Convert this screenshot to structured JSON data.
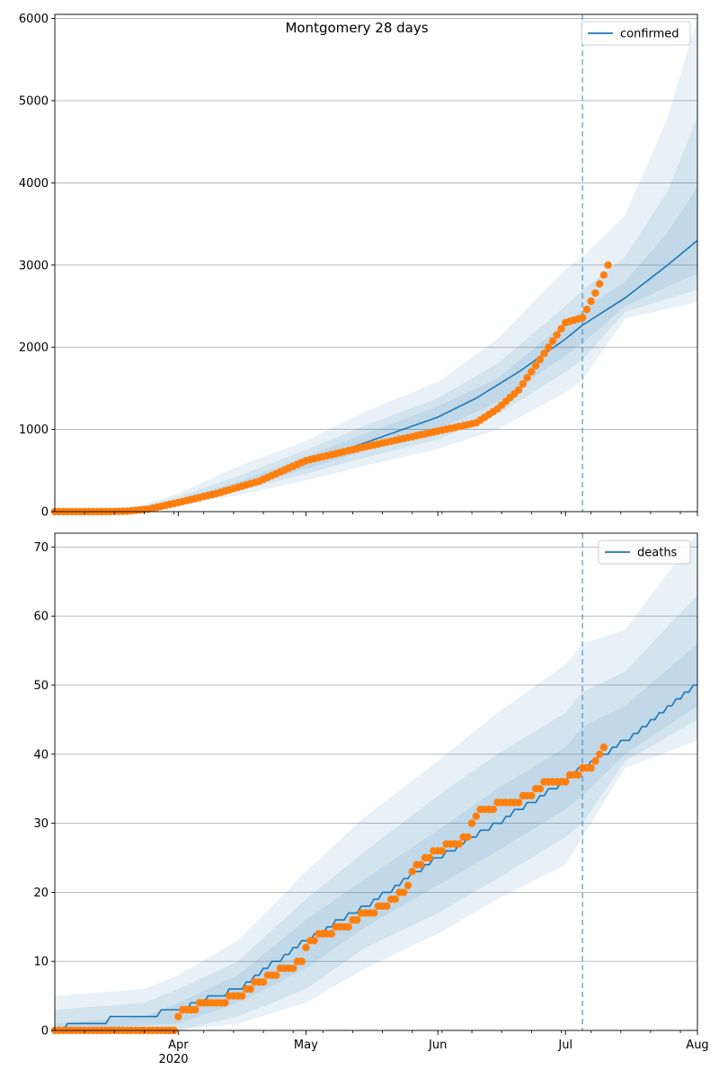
{
  "figure": {
    "title": "Montgomery 28 days",
    "year_label": "2020"
  },
  "colors": {
    "model": "#1f77b4",
    "observed": "#ff7f0e",
    "band": "#1f77b4",
    "grid": "#b0b0b0",
    "cutoff": "#1f77b4"
  },
  "chart_data": [
    {
      "type": "line",
      "legend_entry": "confirmed",
      "legend_position": "top-right",
      "x_range": [
        "2020-03-03",
        "2020-08-01"
      ],
      "ylim": [
        0,
        6050
      ],
      "y_ticks": [
        0,
        1000,
        2000,
        3000,
        4000,
        5000,
        6000
      ],
      "x_ticks": [
        {
          "date": "2020-04-01",
          "label": "Apr"
        },
        {
          "date": "2020-05-01",
          "label": "May"
        },
        {
          "date": "2020-06-01",
          "label": "Jun"
        },
        {
          "date": "2020-07-01",
          "label": "Jul"
        },
        {
          "date": "2020-08-01",
          "label": "Aug"
        }
      ],
      "grid": "y",
      "cutoff_date": "2020-07-05",
      "model_median": [
        [
          "2020-03-03",
          0
        ],
        [
          "2020-03-15",
          5
        ],
        [
          "2020-03-25",
          50
        ],
        [
          "2020-04-01",
          120
        ],
        [
          "2020-04-10",
          220
        ],
        [
          "2020-04-20",
          360
        ],
        [
          "2020-05-01",
          590
        ],
        [
          "2020-05-15",
          840
        ],
        [
          "2020-06-01",
          1150
        ],
        [
          "2020-06-10",
          1380
        ],
        [
          "2020-06-20",
          1700
        ],
        [
          "2020-07-01",
          2100
        ],
        [
          "2020-07-05",
          2270
        ],
        [
          "2020-07-15",
          2600
        ],
        [
          "2020-07-25",
          3000
        ],
        [
          "2020-08-01",
          3300
        ]
      ],
      "bands": [
        {
          "lower": [
            [
              "2020-03-03",
              0
            ],
            [
              "2020-03-20",
              2
            ],
            [
              "2020-04-01",
              70
            ],
            [
              "2020-04-15",
              200
            ],
            [
              "2020-05-01",
              380
            ],
            [
              "2020-05-15",
              560
            ],
            [
              "2020-06-01",
              760
            ],
            [
              "2020-06-15",
              1000
            ],
            [
              "2020-07-01",
              1450
            ],
            [
              "2020-07-05",
              1600
            ],
            [
              "2020-07-15",
              2350
            ],
            [
              "2020-08-01",
              2550
            ]
          ],
          "upper": [
            [
              "2020-03-03",
              0
            ],
            [
              "2020-03-20",
              30
            ],
            [
              "2020-04-01",
              220
            ],
            [
              "2020-04-15",
              550
            ],
            [
              "2020-05-01",
              860
            ],
            [
              "2020-05-15",
              1220
            ],
            [
              "2020-06-01",
              1580
            ],
            [
              "2020-06-15",
              2100
            ],
            [
              "2020-07-01",
              2950
            ],
            [
              "2020-07-05",
              3100
            ],
            [
              "2020-07-15",
              3600
            ],
            [
              "2020-07-25",
              4800
            ],
            [
              "2020-08-01",
              6000
            ]
          ]
        },
        {
          "lower": [
            [
              "2020-03-03",
              0
            ],
            [
              "2020-03-20",
              3
            ],
            [
              "2020-04-01",
              90
            ],
            [
              "2020-04-15",
              250
            ],
            [
              "2020-05-01",
              460
            ],
            [
              "2020-05-15",
              660
            ],
            [
              "2020-06-01",
              880
            ],
            [
              "2020-06-15",
              1180
            ],
            [
              "2020-07-01",
              1700
            ],
            [
              "2020-07-05",
              1850
            ],
            [
              "2020-07-15",
              2430
            ],
            [
              "2020-08-01",
              2700
            ]
          ],
          "upper": [
            [
              "2020-03-03",
              0
            ],
            [
              "2020-03-20",
              20
            ],
            [
              "2020-04-01",
              180
            ],
            [
              "2020-04-15",
              430
            ],
            [
              "2020-05-01",
              750
            ],
            [
              "2020-05-15",
              1050
            ],
            [
              "2020-06-01",
              1380
            ],
            [
              "2020-06-15",
              1800
            ],
            [
              "2020-07-01",
              2500
            ],
            [
              "2020-07-05",
              2700
            ],
            [
              "2020-07-15",
              3100
            ],
            [
              "2020-07-25",
              3900
            ],
            [
              "2020-08-01",
              4800
            ]
          ]
        },
        {
          "lower": [
            [
              "2020-03-03",
              0
            ],
            [
              "2020-03-20",
              4
            ],
            [
              "2020-04-01",
              105
            ],
            [
              "2020-04-15",
              285
            ],
            [
              "2020-05-01",
              520
            ],
            [
              "2020-05-15",
              740
            ],
            [
              "2020-06-01",
              1000
            ],
            [
              "2020-06-15",
              1330
            ],
            [
              "2020-07-01",
              1900
            ],
            [
              "2020-07-05",
              2050
            ],
            [
              "2020-07-15",
              2500
            ],
            [
              "2020-08-01",
              2900
            ]
          ],
          "upper": [
            [
              "2020-03-03",
              0
            ],
            [
              "2020-03-20",
              14
            ],
            [
              "2020-04-01",
              150
            ],
            [
              "2020-04-15",
              360
            ],
            [
              "2020-05-01",
              670
            ],
            [
              "2020-05-15",
              950
            ],
            [
              "2020-06-01",
              1280
            ],
            [
              "2020-06-15",
              1620
            ],
            [
              "2020-07-01",
              2300
            ],
            [
              "2020-07-05",
              2450
            ],
            [
              "2020-07-15",
              2800
            ],
            [
              "2020-07-25",
              3400
            ],
            [
              "2020-08-01",
              3950
            ]
          ]
        }
      ],
      "observed": [
        [
          "2020-03-03",
          0
        ],
        [
          "2020-03-15",
          0
        ],
        [
          "2020-03-20",
          5
        ],
        [
          "2020-03-25",
          30
        ],
        [
          "2020-04-01",
          110
        ],
        [
          "2020-04-10",
          220
        ],
        [
          "2020-04-20",
          370
        ],
        [
          "2020-05-01",
          620
        ],
        [
          "2020-05-15",
          790
        ],
        [
          "2020-05-25",
          900
        ],
        [
          "2020-06-01",
          980
        ],
        [
          "2020-06-10",
          1080
        ],
        [
          "2020-06-15",
          1250
        ],
        [
          "2020-06-20",
          1480
        ],
        [
          "2020-06-25",
          1850
        ],
        [
          "2020-07-01",
          2300
        ],
        [
          "2020-07-05",
          2360
        ],
        [
          "2020-07-08",
          2660
        ],
        [
          "2020-07-10",
          2880
        ],
        [
          "2020-07-11",
          3000
        ]
      ]
    },
    {
      "type": "line",
      "legend_entry": "deaths",
      "legend_position": "top-right",
      "x_range": [
        "2020-03-03",
        "2020-08-01"
      ],
      "ylim": [
        0,
        72
      ],
      "y_ticks": [
        0,
        10,
        20,
        30,
        40,
        50,
        60,
        70
      ],
      "x_ticks": [
        {
          "date": "2020-04-01",
          "label": "Apr"
        },
        {
          "date": "2020-05-01",
          "label": "May"
        },
        {
          "date": "2020-06-01",
          "label": "Jun"
        },
        {
          "date": "2020-07-01",
          "label": "Jul"
        },
        {
          "date": "2020-08-01",
          "label": "Aug"
        }
      ],
      "grid": "y",
      "cutoff_date": "2020-07-05",
      "model_median": [
        [
          "2020-03-03",
          0
        ],
        [
          "2020-03-08",
          1
        ],
        [
          "2020-03-24",
          2
        ],
        [
          "2020-04-01",
          3
        ],
        [
          "2020-04-15",
          6
        ],
        [
          "2020-05-01",
          13
        ],
        [
          "2020-05-15",
          18
        ],
        [
          "2020-06-01",
          25
        ],
        [
          "2020-06-15",
          30
        ],
        [
          "2020-07-01",
          36
        ],
        [
          "2020-07-05",
          38
        ],
        [
          "2020-07-15",
          42
        ],
        [
          "2020-08-01",
          50
        ]
      ],
      "bands": [
        {
          "lower": [
            [
              "2020-03-03",
              0
            ],
            [
              "2020-03-31",
              0
            ],
            [
              "2020-04-15",
              1
            ],
            [
              "2020-05-01",
              4
            ],
            [
              "2020-05-15",
              9
            ],
            [
              "2020-06-01",
              14
            ],
            [
              "2020-06-15",
              19
            ],
            [
              "2020-07-01",
              24
            ],
            [
              "2020-07-05",
              28
            ],
            [
              "2020-07-15",
              38
            ],
            [
              "2020-08-01",
              42
            ]
          ],
          "upper": [
            [
              "2020-03-03",
              5
            ],
            [
              "2020-03-24",
              6
            ],
            [
              "2020-04-01",
              8
            ],
            [
              "2020-04-15",
              13
            ],
            [
              "2020-05-01",
              23
            ],
            [
              "2020-05-15",
              31
            ],
            [
              "2020-06-01",
              39
            ],
            [
              "2020-06-15",
              46
            ],
            [
              "2020-07-01",
              53
            ],
            [
              "2020-07-05",
              56
            ],
            [
              "2020-07-15",
              58
            ],
            [
              "2020-08-01",
              72
            ]
          ]
        },
        {
          "lower": [
            [
              "2020-03-03",
              0
            ],
            [
              "2020-04-01",
              0
            ],
            [
              "2020-04-15",
              2
            ],
            [
              "2020-05-01",
              6
            ],
            [
              "2020-05-15",
              12
            ],
            [
              "2020-06-01",
              17
            ],
            [
              "2020-06-15",
              22
            ],
            [
              "2020-07-01",
              28
            ],
            [
              "2020-07-05",
              30
            ],
            [
              "2020-07-15",
              39
            ],
            [
              "2020-08-01",
              45
            ]
          ],
          "upper": [
            [
              "2020-03-03",
              3
            ],
            [
              "2020-03-24",
              4
            ],
            [
              "2020-04-01",
              6
            ],
            [
              "2020-04-15",
              10
            ],
            [
              "2020-05-01",
              19
            ],
            [
              "2020-05-15",
              26
            ],
            [
              "2020-06-01",
              34
            ],
            [
              "2020-06-15",
              40
            ],
            [
              "2020-07-01",
              46
            ],
            [
              "2020-07-05",
              49
            ],
            [
              "2020-07-15",
              52
            ],
            [
              "2020-08-01",
              63
            ]
          ]
        },
        {
          "lower": [
            [
              "2020-03-03",
              0
            ],
            [
              "2020-04-01",
              1
            ],
            [
              "2020-04-15",
              4
            ],
            [
              "2020-05-01",
              9
            ],
            [
              "2020-05-15",
              15
            ],
            [
              "2020-06-01",
              21
            ],
            [
              "2020-06-15",
              26
            ],
            [
              "2020-07-01",
              32
            ],
            [
              "2020-07-05",
              34
            ],
            [
              "2020-07-15",
              40
            ],
            [
              "2020-08-01",
              47
            ]
          ],
          "upper": [
            [
              "2020-03-03",
              1
            ],
            [
              "2020-03-24",
              2
            ],
            [
              "2020-04-01",
              4
            ],
            [
              "2020-04-15",
              8
            ],
            [
              "2020-05-01",
              16
            ],
            [
              "2020-05-15",
              22
            ],
            [
              "2020-06-01",
              29
            ],
            [
              "2020-06-15",
              35
            ],
            [
              "2020-07-01",
              41
            ],
            [
              "2020-07-05",
              44
            ],
            [
              "2020-07-15",
              47
            ],
            [
              "2020-08-01",
              56
            ]
          ]
        }
      ],
      "observed": [
        [
          "2020-03-03",
          0
        ],
        [
          "2020-03-31",
          0
        ],
        [
          "2020-04-01",
          2
        ],
        [
          "2020-04-02",
          3
        ],
        [
          "2020-04-10",
          4
        ],
        [
          "2020-04-15",
          5
        ],
        [
          "2020-04-20",
          7
        ],
        [
          "2020-04-30",
          10
        ],
        [
          "2020-05-01",
          12
        ],
        [
          "2020-05-05",
          14
        ],
        [
          "2020-05-10",
          15
        ],
        [
          "2020-05-15",
          17
        ],
        [
          "2020-05-20",
          18
        ],
        [
          "2020-05-25",
          21
        ],
        [
          "2020-05-26",
          23
        ],
        [
          "2020-06-01",
          26
        ],
        [
          "2020-06-05",
          27
        ],
        [
          "2020-06-08",
          28
        ],
        [
          "2020-06-10",
          31
        ],
        [
          "2020-06-12",
          32
        ],
        [
          "2020-06-18",
          33
        ],
        [
          "2020-06-23",
          34
        ],
        [
          "2020-06-26",
          36
        ],
        [
          "2020-07-01",
          36
        ],
        [
          "2020-07-02",
          37
        ],
        [
          "2020-07-07",
          38
        ],
        [
          "2020-07-09",
          40
        ],
        [
          "2020-07-10",
          41
        ]
      ]
    }
  ]
}
